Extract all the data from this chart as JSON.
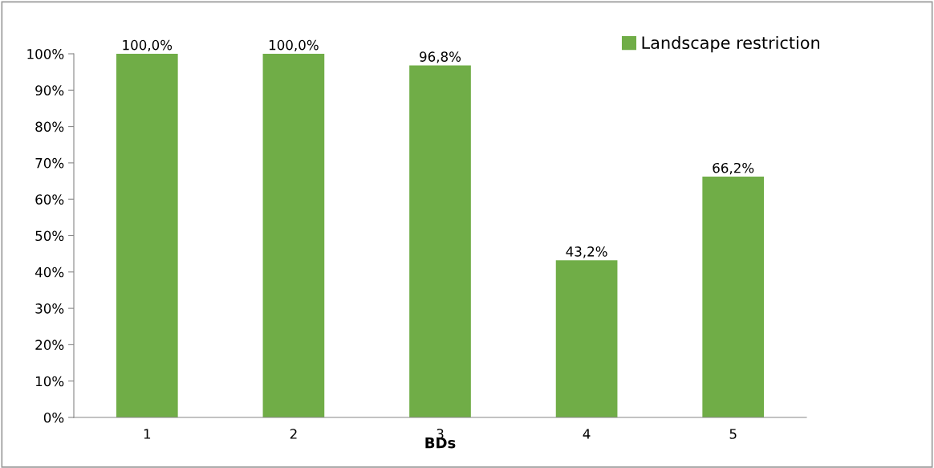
{
  "chart_data": {
    "type": "bar",
    "xlabel": "BDs",
    "categories": [
      "1",
      "2",
      "3",
      "4",
      "5"
    ],
    "series": [
      {
        "name": "Landscape restriction",
        "color": "#70ad47",
        "values": [
          100.0,
          100.0,
          96.8,
          43.2,
          66.2
        ],
        "value_labels": [
          "100,0%",
          "100,0%",
          "96,8%",
          "43,2%",
          "66,2%"
        ]
      }
    ],
    "ylim": [
      0,
      100
    ],
    "yticks": [
      {
        "value": 0,
        "label": "0%"
      },
      {
        "value": 10,
        "label": "10%"
      },
      {
        "value": 20,
        "label": "20%"
      },
      {
        "value": 30,
        "label": "30%"
      },
      {
        "value": 40,
        "label": "40%"
      },
      {
        "value": 50,
        "label": "50%"
      },
      {
        "value": 60,
        "label": "60%"
      },
      {
        "value": 70,
        "label": "70%"
      },
      {
        "value": 80,
        "label": "80%"
      },
      {
        "value": 90,
        "label": "90%"
      },
      {
        "value": 100,
        "label": "100%"
      }
    ],
    "grid": false,
    "legend": "top right"
  }
}
